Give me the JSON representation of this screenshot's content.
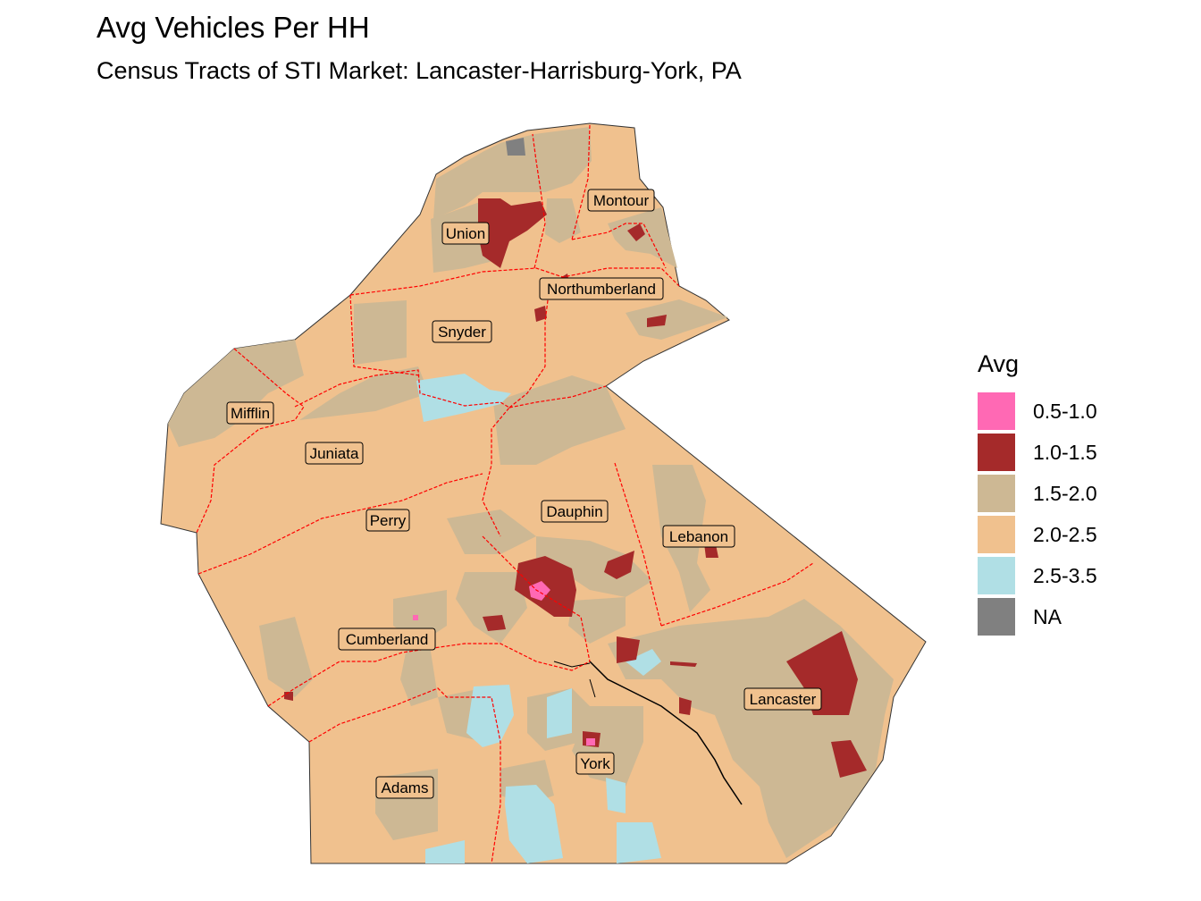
{
  "title": "Avg Vehicles Per HH",
  "subtitle": "Census Tracts of STI Market: Lancaster-Harrisburg-York, PA",
  "legend": {
    "title": "Avg",
    "items": [
      {
        "label": "0.5-1.0",
        "color": "#ff69b4"
      },
      {
        "label": "1.0-1.5",
        "color": "#a52a2a"
      },
      {
        "label": "1.5-2.0",
        "color": "#cdb894"
      },
      {
        "label": "2.0-2.5",
        "color": "#f0c18e"
      },
      {
        "label": "2.5-3.5",
        "color": "#b0dfe5"
      },
      {
        "label": "NA",
        "color": "#808080"
      }
    ]
  },
  "counties": [
    "Montour",
    "Union",
    "Northumberland",
    "Snyder",
    "Mifflin",
    "Juniata",
    "Perry",
    "Dauphin",
    "Lebanon",
    "Cumberland",
    "Lancaster",
    "York",
    "Adams"
  ],
  "boundary_color": "#ff0000"
}
